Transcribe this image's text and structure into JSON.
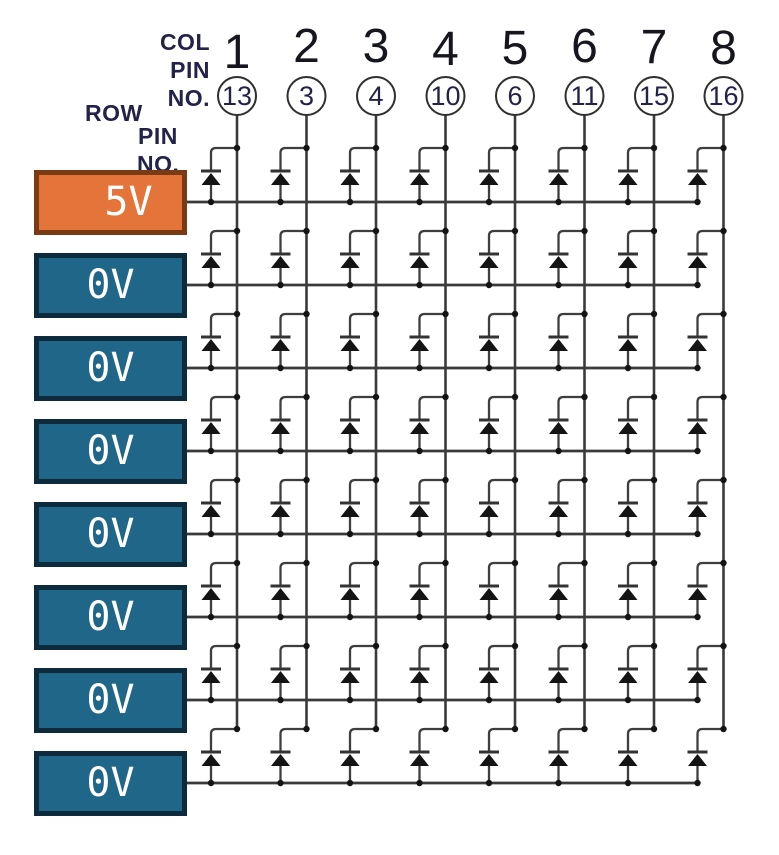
{
  "col_header": [
    "COL",
    "PIN",
    "NO."
  ],
  "row_header": [
    "ROW",
    "PIN",
    "NO."
  ],
  "columns": [
    {
      "number": "1",
      "pin": "13"
    },
    {
      "number": "2",
      "pin": "3"
    },
    {
      "number": "3",
      "pin": "4"
    },
    {
      "number": "4",
      "pin": "10"
    },
    {
      "number": "5",
      "pin": "6"
    },
    {
      "number": "6",
      "pin": "11"
    },
    {
      "number": "7",
      "pin": "15"
    },
    {
      "number": "8",
      "pin": "16"
    }
  ],
  "rows": [
    {
      "label": "5V",
      "state": "high"
    },
    {
      "label": "0V",
      "state": "low"
    },
    {
      "label": "0V",
      "state": "low"
    },
    {
      "label": "0V",
      "state": "low"
    },
    {
      "label": "0V",
      "state": "low"
    },
    {
      "label": "0V",
      "state": "low"
    },
    {
      "label": "0V",
      "state": "low"
    },
    {
      "label": "0V",
      "state": "low"
    }
  ],
  "colors": {
    "high_fill": "#E4743A",
    "high_border": "#7A3B14",
    "low_fill": "#206689",
    "low_border": "#0E2B3D",
    "box_text": "#FFFFFF",
    "header_text": "#23234A",
    "number_text": "#16161F",
    "pin_text": "#23234A",
    "row_wire": "#3A3A3A",
    "column_wire": "#3A3A3A",
    "branch_wire": "#3E3E3E",
    "diode": "#141414",
    "circle_stroke": "#2F2F2F",
    "background": "#FFFFFF"
  }
}
